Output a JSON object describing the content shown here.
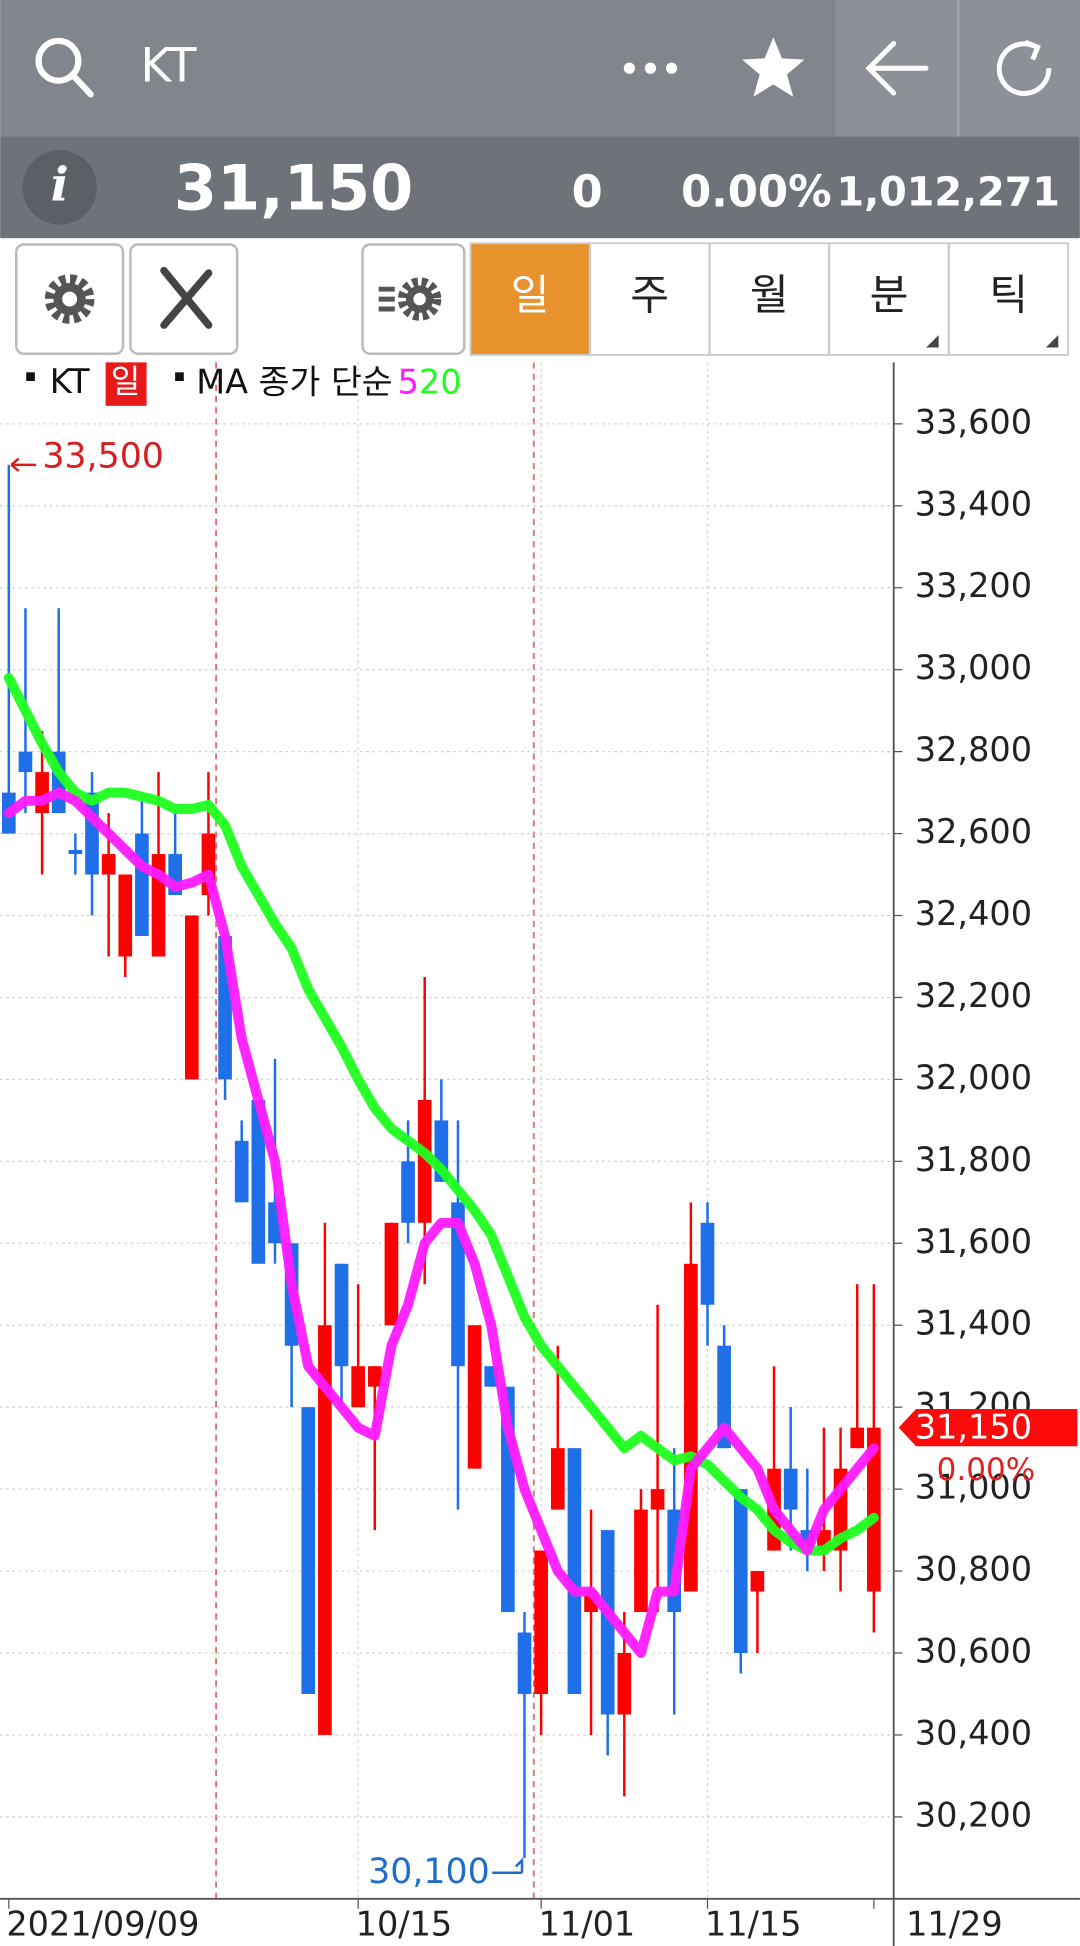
{
  "header": {
    "title": "KT"
  },
  "quote": {
    "price": "31,150",
    "change": "0",
    "change_pct": "0.00%",
    "volume": "1,012,271"
  },
  "tabs": [
    "일",
    "주",
    "월",
    "분",
    "틱"
  ],
  "active_tab": 0,
  "chart_data": {
    "type": "candlestick",
    "legend": {
      "symbol": "KT",
      "period": "일",
      "ma_label": "MA 종가 단순"
    },
    "categories": [
      "2021/09/09",
      null,
      null,
      null,
      null,
      null,
      null,
      null,
      null,
      null,
      null,
      null,
      null,
      null,
      null,
      null,
      null,
      null,
      null,
      null,
      null,
      "10/15",
      null,
      null,
      null,
      null,
      null,
      null,
      null,
      null,
      null,
      null,
      "11/01",
      null,
      null,
      null,
      null,
      null,
      null,
      null,
      null,
      null,
      "11/15",
      null,
      null,
      null,
      null,
      null,
      null,
      null,
      null,
      null,
      "11/29"
    ],
    "open": [
      32700,
      32800,
      32650,
      32800,
      32560,
      32700,
      32500,
      32300,
      32600,
      32300,
      32550,
      32000,
      32450,
      32350,
      31850,
      31950,
      31700,
      31600,
      31200,
      30400,
      31550,
      31200,
      31250,
      31400,
      31800,
      31650,
      31900,
      31700,
      31050,
      31300,
      31250,
      30650,
      30500,
      30950,
      31100,
      30700,
      30900,
      30450,
      30700,
      30950,
      30950,
      30750,
      31650,
      31350,
      31000,
      30750,
      30850,
      31050,
      30900,
      30850,
      30850,
      31100,
      30750
    ],
    "high": [
      33500,
      33150,
      32850,
      33150,
      32600,
      32750,
      32650,
      32500,
      32700,
      32750,
      32650,
      32400,
      32750,
      32350,
      31900,
      31950,
      32050,
      31600,
      31200,
      31650,
      31550,
      31500,
      31300,
      31650,
      31900,
      32250,
      32000,
      31900,
      31400,
      31300,
      31250,
      30700,
      30850,
      31350,
      31100,
      30950,
      30900,
      30700,
      31000,
      31450,
      31100,
      31700,
      31700,
      31400,
      31000,
      30800,
      31300,
      31200,
      31050,
      31150,
      31150,
      31500,
      31500
    ],
    "low": [
      32600,
      32650,
      32500,
      32650,
      32500,
      32400,
      32300,
      32250,
      32350,
      32300,
      32450,
      32000,
      32400,
      31950,
      31700,
      31550,
      31550,
      31200,
      30500,
      30400,
      31200,
      31200,
      30900,
      31400,
      31600,
      31500,
      31750,
      30950,
      31050,
      31250,
      30700,
      30100,
      30400,
      30950,
      30500,
      30400,
      30350,
      30250,
      30700,
      30700,
      30450,
      30750,
      31350,
      31100,
      30550,
      30600,
      30850,
      30850,
      30800,
      30800,
      30750,
      31100,
      30650
    ],
    "close": [
      32600,
      32750,
      32750,
      32650,
      32550,
      32500,
      32550,
      32500,
      32350,
      32550,
      32450,
      32400,
      32600,
      32000,
      31700,
      31550,
      31600,
      31350,
      30500,
      31400,
      31300,
      31300,
      31300,
      31650,
      31650,
      31950,
      31750,
      31300,
      31400,
      31250,
      30700,
      30500,
      30850,
      31100,
      30500,
      30750,
      30450,
      30600,
      30950,
      31000,
      30700,
      31550,
      31450,
      31100,
      30600,
      30800,
      31050,
      30950,
      30850,
      30900,
      31050,
      31150,
      31150
    ],
    "up_color": "#ff0000",
    "down_color": "#1f6fe8",
    "series": [
      {
        "name": "5",
        "color": "#ff1aff",
        "values": [
          32650,
          32680,
          32680,
          32700,
          32680,
          32640,
          32600,
          32560,
          32520,
          32500,
          32470,
          32480,
          32500,
          32350,
          32100,
          31950,
          31800,
          31500,
          31300,
          31250,
          31200,
          31150,
          31130,
          31350,
          31450,
          31600,
          31650,
          31650,
          31550,
          31400,
          31150,
          31000,
          30900,
          30800,
          30750,
          30750,
          30700,
          30650,
          30600,
          30750,
          30750,
          31050,
          31100,
          31150,
          31100,
          31050,
          30950,
          30900,
          30850,
          30950,
          31000,
          31050,
          31100
        ]
      },
      {
        "name": "20",
        "color": "#1eff1e",
        "values": [
          32980,
          32900,
          32820,
          32750,
          32700,
          32680,
          32700,
          32700,
          32690,
          32680,
          32660,
          32660,
          32670,
          32620,
          32520,
          32450,
          32380,
          32320,
          32220,
          32150,
          32080,
          32000,
          31930,
          31880,
          31850,
          31820,
          31780,
          31730,
          31680,
          31620,
          31520,
          31420,
          31350,
          31300,
          31250,
          31200,
          31150,
          31100,
          31130,
          31100,
          31070,
          31080,
          31060,
          31020,
          30980,
          30950,
          30900,
          30870,
          30850,
          30850,
          30880,
          30900,
          30930
        ]
      }
    ],
    "ylim": [
      30000,
      33750
    ],
    "yticks": [
      {
        "value": 33600,
        "label": "33,600"
      },
      {
        "value": 33400,
        "label": "33,400"
      },
      {
        "value": 33200,
        "label": "33,200"
      },
      {
        "value": 33000,
        "label": "33,000"
      },
      {
        "value": 32800,
        "label": "32,800"
      },
      {
        "value": 32600,
        "label": "32,600"
      },
      {
        "value": 32400,
        "label": "32,400"
      },
      {
        "value": 32200,
        "label": "32,200"
      },
      {
        "value": 32000,
        "label": "32,000"
      },
      {
        "value": 31800,
        "label": "31,800"
      },
      {
        "value": 31600,
        "label": "31,600"
      },
      {
        "value": 31400,
        "label": "31,400"
      },
      {
        "value": 31200,
        "label": "31,200"
      },
      {
        "value": 31000,
        "label": "31,000"
      },
      {
        "value": 30800,
        "label": "30,800"
      },
      {
        "value": 30600,
        "label": "30,600"
      },
      {
        "value": 30400,
        "label": "30,400"
      },
      {
        "value": 30200,
        "label": "30,200"
      }
    ],
    "annotations": [
      {
        "value": 33500,
        "label": "33,500",
        "color": "#d42020"
      },
      {
        "value": 30100,
        "label": "30,100",
        "color": "#1f6fc8"
      }
    ],
    "last_price": {
      "value": 31150,
      "label": "31,150",
      "change": "0.00%"
    }
  }
}
